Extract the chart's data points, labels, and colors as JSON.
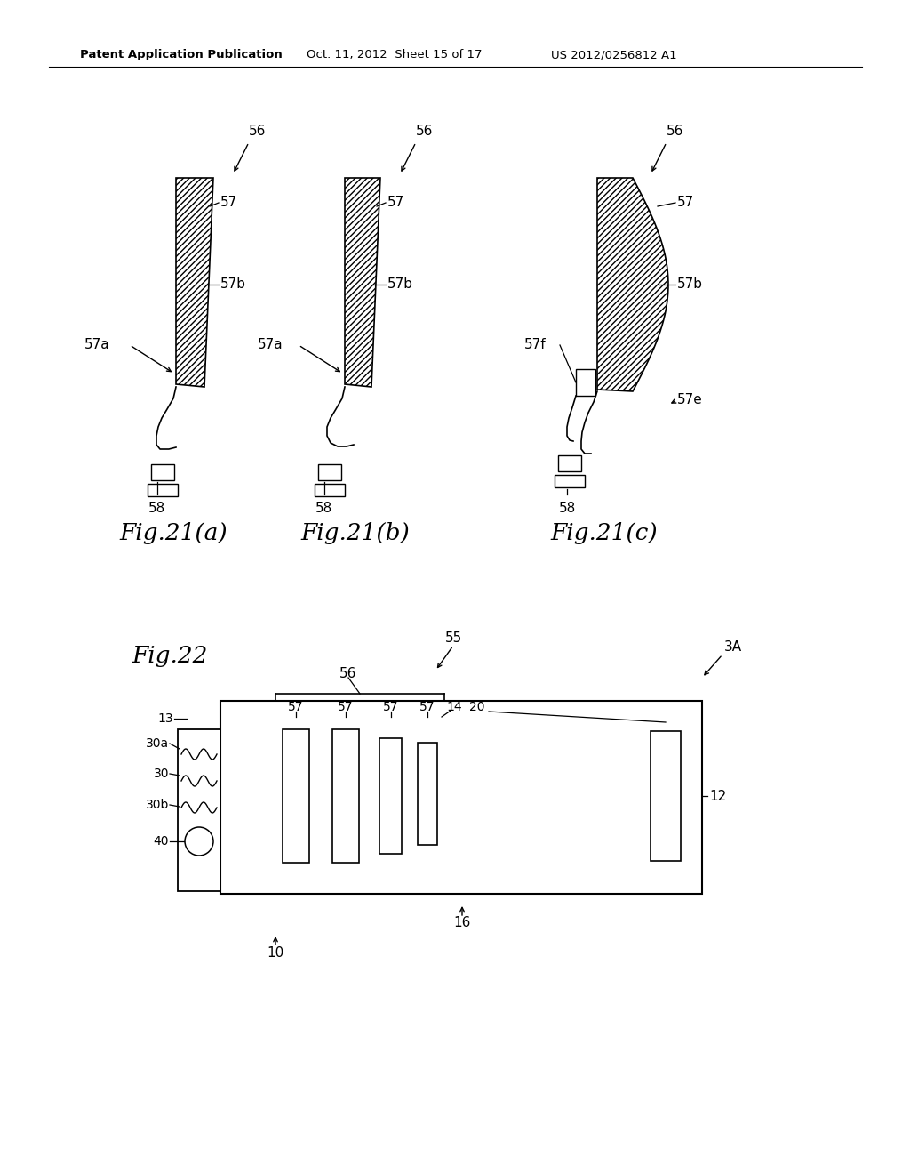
{
  "bg_color": "#ffffff",
  "header_text": "Patent Application Publication",
  "header_date": "Oct. 11, 2012  Sheet 15 of 17",
  "header_patent": "US 2012/0256812 A1"
}
